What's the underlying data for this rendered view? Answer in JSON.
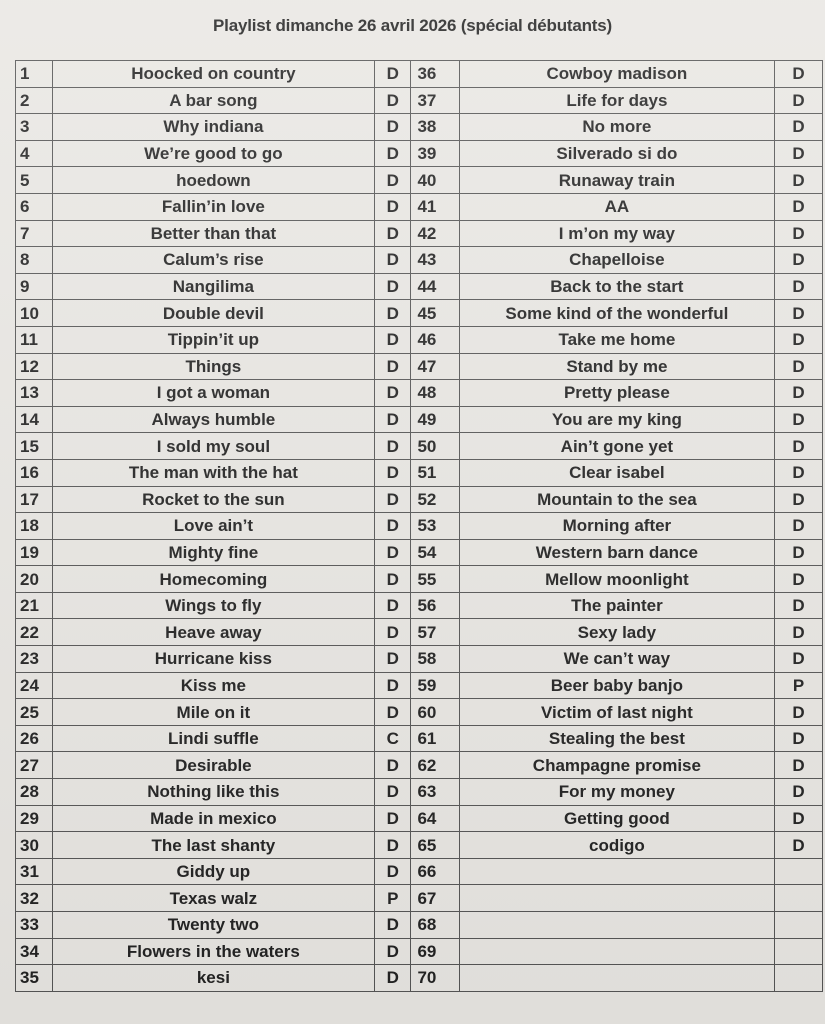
{
  "document": {
    "title": "Playlist dimanche 26 avril 2026 (spécial débutants)",
    "rows": [
      {
        "n": "1",
        "title": "Hoocked on country",
        "level": "D",
        "n2": "36",
        "title2": "Cowboy madison",
        "level2": "D"
      },
      {
        "n": "2",
        "title": "A bar song",
        "level": "D",
        "n2": "37",
        "title2": "Life for days",
        "level2": "D"
      },
      {
        "n": "3",
        "title": "Why indiana",
        "level": "D",
        "n2": "38",
        "title2": "No more",
        "level2": "D"
      },
      {
        "n": "4",
        "title": "We’re good to go",
        "level": "D",
        "n2": "39",
        "title2": "Silverado si do",
        "level2": "D"
      },
      {
        "n": "5",
        "title": "hoedown",
        "level": "D",
        "n2": "40",
        "title2": "Runaway train",
        "level2": "D"
      },
      {
        "n": "6",
        "title": "Fallin’in love",
        "level": "D",
        "n2": "41",
        "title2": "AA",
        "level2": "D"
      },
      {
        "n": "7",
        "title": "Better than that",
        "level": "D",
        "n2": "42",
        "title2": "I m’on my way",
        "level2": "D"
      },
      {
        "n": "8",
        "title": "Calum’s rise",
        "level": "D",
        "n2": "43",
        "title2": "Chapelloise",
        "level2": "D"
      },
      {
        "n": "9",
        "title": "Nangilima",
        "level": "D",
        "n2": "44",
        "title2": "Back to the start",
        "level2": "D"
      },
      {
        "n": "10",
        "title": "Double devil",
        "level": "D",
        "n2": "45",
        "title2": "Some kind of the wonderful",
        "level2": "D"
      },
      {
        "n": "11",
        "title": "Tippin’it up",
        "level": "D",
        "n2": "46",
        "title2": "Take me home",
        "level2": "D"
      },
      {
        "n": "12",
        "title": "Things",
        "level": "D",
        "n2": "47",
        "title2": "Stand by me",
        "level2": "D"
      },
      {
        "n": "13",
        "title": "I got a woman",
        "level": "D",
        "n2": "48",
        "title2": "Pretty please",
        "level2": "D"
      },
      {
        "n": "14",
        "title": "Always humble",
        "level": "D",
        "n2": "49",
        "title2": "You are my king",
        "level2": "D"
      },
      {
        "n": "15",
        "title": "I sold my soul",
        "level": "D",
        "n2": "50",
        "title2": "Ain’t gone yet",
        "level2": "D"
      },
      {
        "n": "16",
        "title": "The man with the hat",
        "level": "D",
        "n2": "51",
        "title2": "Clear isabel",
        "level2": "D"
      },
      {
        "n": "17",
        "title": "Rocket to the sun",
        "level": "D",
        "n2": "52",
        "title2": "Mountain to the sea",
        "level2": "D"
      },
      {
        "n": "18",
        "title": "Love ain’t",
        "level": "D",
        "n2": "53",
        "title2": "Morning after",
        "level2": "D"
      },
      {
        "n": "19",
        "title": "Mighty fine",
        "level": "D",
        "n2": "54",
        "title2": "Western barn dance",
        "level2": "D"
      },
      {
        "n": "20",
        "title": "Homecoming",
        "level": "D",
        "n2": "55",
        "title2": "Mellow moonlight",
        "level2": "D"
      },
      {
        "n": "21",
        "title": "Wings to fly",
        "level": "D",
        "n2": "56",
        "title2": "The painter",
        "level2": "D"
      },
      {
        "n": "22",
        "title": "Heave away",
        "level": "D",
        "n2": "57",
        "title2": "Sexy lady",
        "level2": "D"
      },
      {
        "n": "23",
        "title": "Hurricane kiss",
        "level": "D",
        "n2": "58",
        "title2": "We can’t way",
        "level2": "D"
      },
      {
        "n": "24",
        "title": "Kiss me",
        "level": "D",
        "n2": "59",
        "title2": "Beer baby banjo",
        "level2": "P"
      },
      {
        "n": "25",
        "title": "Mile on it",
        "level": "D",
        "n2": "60",
        "title2": "Victim of last night",
        "level2": "D"
      },
      {
        "n": "26",
        "title": "Lindi suffle",
        "level": "C",
        "n2": "61",
        "title2": "Stealing the best",
        "level2": "D"
      },
      {
        "n": "27",
        "title": "Desirable",
        "level": "D",
        "n2": "62",
        "title2": "Champagne promise",
        "level2": "D"
      },
      {
        "n": "28",
        "title": "Nothing like this",
        "level": "D",
        "n2": "63",
        "title2": "For my money",
        "level2": "D"
      },
      {
        "n": "29",
        "title": "Made in mexico",
        "level": "D",
        "n2": "64",
        "title2": "Getting good",
        "level2": "D"
      },
      {
        "n": "30",
        "title": "The last shanty",
        "level": "D",
        "n2": "65",
        "title2": "codigo",
        "level2": "D"
      },
      {
        "n": "31",
        "title": "Giddy up",
        "level": "D",
        "n2": "66",
        "title2": "",
        "level2": ""
      },
      {
        "n": "32",
        "title": "Texas walz",
        "level": "P",
        "n2": "67",
        "title2": "",
        "level2": ""
      },
      {
        "n": "33",
        "title": "Twenty two",
        "level": "D",
        "n2": "68",
        "title2": "",
        "level2": ""
      },
      {
        "n": "34",
        "title": "Flowers in the waters",
        "level": "D",
        "n2": "69",
        "title2": "",
        "level2": ""
      },
      {
        "n": "35",
        "title": "kesi",
        "level": "D",
        "n2": "70",
        "title2": "",
        "level2": ""
      }
    ]
  }
}
